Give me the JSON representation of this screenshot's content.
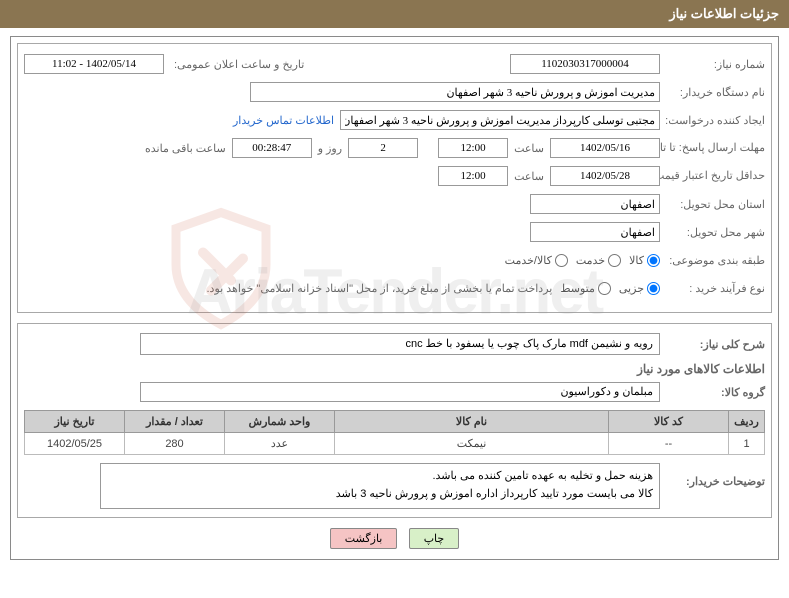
{
  "header": {
    "title": "جزئیات اطلاعات نیاز"
  },
  "form": {
    "need_number_label": "شماره نیاز:",
    "need_number": "1102030317000004",
    "announce_label": "تاریخ و ساعت اعلان عمومی:",
    "announce_value": "1402/05/14 - 11:02",
    "buyer_org_label": "نام دستگاه خریدار:",
    "buyer_org": "مدیریت اموزش و پرورش ناحیه 3 شهر اصفهان",
    "requester_label": "ایجاد کننده درخواست:",
    "requester": "مجتبی توسلی کارپرداز مدیریت اموزش و پرورش ناحیه 3 شهر اصفهان",
    "buyer_contact_link": "اطلاعات تماس خریدار",
    "response_deadline_label": "مهلت ارسال پاسخ: تا تاریخ:",
    "response_date": "1402/05/16",
    "hour_label": "ساعت",
    "response_hour": "12:00",
    "days_value": "2",
    "days_label": "روز و",
    "countdown": "00:28:47",
    "remaining_label": "ساعت باقی مانده",
    "validity_label": "حداقل تاریخ اعتبار قیمت: تا تاریخ:",
    "validity_date": "1402/05/28",
    "validity_hour": "12:00",
    "province_label": "استان محل تحویل:",
    "province": "اصفهان",
    "city_label": "شهر محل تحویل:",
    "city": "اصفهان",
    "category_label": "طبقه بندی موضوعی:",
    "radio_goods": "کالا",
    "radio_service": "خدمت",
    "radio_both": "کالا/خدمت",
    "purchase_type_label": "نوع فرآیند خرید :",
    "radio_partial": "جزیی",
    "radio_medium": "متوسط",
    "treasury_note": "پرداخت تمام یا بخشی از مبلغ خرید، از محل \"اسناد خزانه اسلامی\" خواهد بود."
  },
  "description": {
    "label": "شرح کلی نیاز:",
    "text": "رویه و نشیمن mdf مارک پاک چوب یا یسفود با خط cnc"
  },
  "goods": {
    "section_title": "اطلاعات کالاهای مورد نیاز",
    "group_label": "گروه کالا:",
    "group_value": "مبلمان و دکوراسیون",
    "columns": {
      "row": "ردیف",
      "code": "کد کالا",
      "name": "نام کالا",
      "unit": "واحد شمارش",
      "qty": "تعداد / مقدار",
      "date": "تاریخ نیاز"
    },
    "rows": [
      {
        "row": "1",
        "code": "--",
        "name": "نیمکت",
        "unit": "عدد",
        "qty": "280",
        "date": "1402/05/25"
      }
    ]
  },
  "buyer_desc": {
    "label": "توضیحات خریدار:",
    "text": "هزینه حمل و تخلیه به عهده تامین کننده می باشد.\nکالا می بایست مورد تایید کارپرداز اداره اموزش و پرورش ناحیه 3 باشد"
  },
  "buttons": {
    "print": "چاپ",
    "back": "بازگشت"
  },
  "watermark": "AriaTender.net"
}
